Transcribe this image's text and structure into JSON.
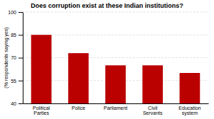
{
  "chart_data": {
    "type": "bar",
    "title": "Does corruption exist at these Indian institutions?",
    "categories": [
      "Political\nParties",
      "Police",
      "Parliament",
      "Civil\nServants",
      "Education\nsystem"
    ],
    "values": [
      85,
      73,
      65,
      65,
      60
    ],
    "color": "#bb0000",
    "ylabel": "(% respondents saying yes)",
    "ylim": [
      40,
      100
    ],
    "yticks": [
      40,
      55,
      70,
      85,
      100
    ],
    "grid": true
  }
}
